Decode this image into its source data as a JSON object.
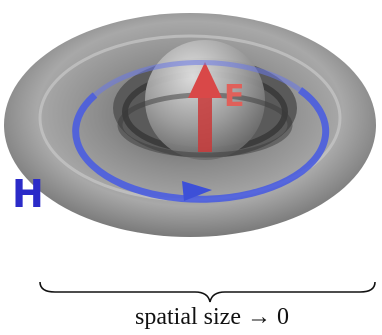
{
  "labels": {
    "electric_field": "E",
    "magnetic_field": "H",
    "caption": "spatial size → 0"
  }
}
